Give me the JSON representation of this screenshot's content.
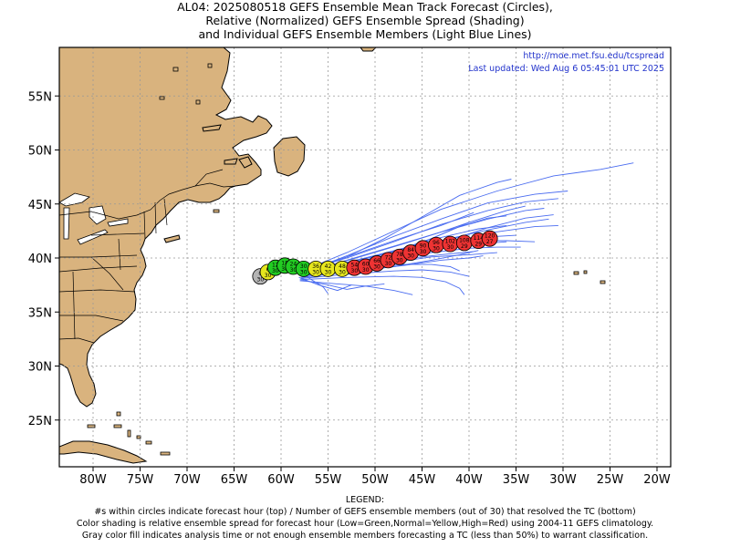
{
  "title": {
    "line1": "AL04: 2025080518 GEFS Ensemble Mean Track Forecast (Circles),",
    "line2": "Relative (Normalized) GEFS Ensemble Spread (Shading)",
    "line3": "and Individual GEFS Ensemble Members (Light Blue Lines)"
  },
  "info": {
    "url": "http://moe.met.fsu.edu/tcspread",
    "updated": "Last updated: Wed Aug 6 05:45:01 UTC 2025"
  },
  "axes": {
    "lon_ticks": [
      "80W",
      "75W",
      "70W",
      "65W",
      "60W",
      "55W",
      "50W",
      "45W",
      "40W",
      "35W",
      "30W",
      "25W",
      "20W"
    ],
    "lat_ticks": [
      "55N",
      "50N",
      "45N",
      "40N",
      "35N",
      "30N",
      "25N"
    ]
  },
  "legend": {
    "heading": "LEGEND:",
    "line1": "#s within circles indicate forecast hour (top) / Number of GEFS ensemble members (out of 30) that resolved the TC (bottom)",
    "line2": "Color shading is relative ensemble spread for forecast hour (Low=Green,Normal=Yellow,High=Red) using 2004-11 GEFS climatology.",
    "line3": "Gray color fill indicates analysis time or not enough ensemble members forecasting a TC (less than 50%) to warrant classification."
  },
  "colors": {
    "land": "#d9b37e",
    "ocean": "#ffffff",
    "member_track": "#4a6cf0",
    "gray": "#b4b4b4",
    "low": "#22cc22",
    "normal": "#e6e61e",
    "high": "#ee3333"
  },
  "mean_track": [
    {
      "hour": "0",
      "members": "30",
      "lon": -62.2,
      "lat": 38.3,
      "spread": "gray"
    },
    {
      "hour": "6",
      "members": "30",
      "lon": -61.4,
      "lat": 38.7,
      "spread": "normal"
    },
    {
      "hour": "12",
      "members": "30",
      "lon": -60.6,
      "lat": 39.1,
      "spread": "low"
    },
    {
      "hour": "18",
      "members": "30",
      "lon": -59.6,
      "lat": 39.3,
      "spread": "low"
    },
    {
      "hour": "24",
      "members": "30",
      "lon": -58.7,
      "lat": 39.2,
      "spread": "low"
    },
    {
      "hour": "30",
      "members": "30",
      "lon": -57.6,
      "lat": 39.0,
      "spread": "low"
    },
    {
      "hour": "36",
      "members": "30",
      "lon": -56.3,
      "lat": 39.0,
      "spread": "normal"
    },
    {
      "hour": "42",
      "members": "30",
      "lon": -55.0,
      "lat": 39.0,
      "spread": "normal"
    },
    {
      "hour": "48",
      "members": "30",
      "lon": -53.5,
      "lat": 39.0,
      "spread": "normal"
    },
    {
      "hour": "54",
      "members": "30",
      "lon": -52.2,
      "lat": 39.1,
      "spread": "high"
    },
    {
      "hour": "60",
      "members": "30",
      "lon": -51.0,
      "lat": 39.2,
      "spread": "high"
    },
    {
      "hour": "66",
      "members": "30",
      "lon": -49.8,
      "lat": 39.5,
      "spread": "high"
    },
    {
      "hour": "72",
      "members": "30",
      "lon": -48.6,
      "lat": 39.8,
      "spread": "high"
    },
    {
      "hour": "78",
      "members": "30",
      "lon": -47.4,
      "lat": 40.1,
      "spread": "high"
    },
    {
      "hour": "84",
      "members": "30",
      "lon": -46.2,
      "lat": 40.5,
      "spread": "high"
    },
    {
      "hour": "90",
      "members": "30",
      "lon": -44.9,
      "lat": 40.9,
      "spread": "high"
    },
    {
      "hour": "96",
      "members": "30",
      "lon": -43.5,
      "lat": 41.2,
      "spread": "high"
    },
    {
      "hour": "102",
      "members": "30",
      "lon": -42.0,
      "lat": 41.3,
      "spread": "high"
    },
    {
      "hour": "108",
      "members": "29",
      "lon": -40.5,
      "lat": 41.4,
      "spread": "high"
    },
    {
      "hour": "114",
      "members": "29",
      "lon": -39.0,
      "lat": 41.6,
      "spread": "high"
    },
    {
      "hour": "120",
      "members": "27",
      "lon": -37.8,
      "lat": 41.8,
      "spread": "high"
    }
  ],
  "member_tracks": [
    [
      [
        -57.5,
        38.9
      ],
      [
        -53,
        40.5
      ],
      [
        -48,
        42.5
      ],
      [
        -43,
        44.5
      ],
      [
        -37,
        46.2
      ],
      [
        -31,
        47.6
      ],
      [
        -26,
        48.2
      ],
      [
        -22.5,
        48.8
      ]
    ],
    [
      [
        -57.5,
        38.7
      ],
      [
        -53,
        40.2
      ],
      [
        -48,
        42
      ],
      [
        -43,
        43.6
      ],
      [
        -38,
        45.1
      ],
      [
        -33,
        45.9
      ],
      [
        -29.5,
        46.2
      ]
    ],
    [
      [
        -57.5,
        38.8
      ],
      [
        -53,
        40.0
      ],
      [
        -48,
        41.5
      ],
      [
        -43,
        43.1
      ],
      [
        -38,
        44.4
      ],
      [
        -34,
        45.2
      ],
      [
        -30.5,
        45.5
      ]
    ],
    [
      [
        -57.6,
        38.6
      ],
      [
        -53,
        39.8
      ],
      [
        -48,
        41.1
      ],
      [
        -43,
        42.4
      ],
      [
        -38,
        43.6
      ],
      [
        -34,
        44.4
      ],
      [
        -32,
        44.6
      ]
    ],
    [
      [
        -57.6,
        38.6
      ],
      [
        -53,
        39.6
      ],
      [
        -48,
        40.6
      ],
      [
        -44,
        41.8
      ],
      [
        -40,
        43.3
      ],
      [
        -36,
        44.4
      ],
      [
        -34,
        44.8
      ]
    ],
    [
      [
        -57.6,
        38.6
      ],
      [
        -53,
        39.5
      ],
      [
        -48,
        40.6
      ],
      [
        -43,
        41.6
      ],
      [
        -38,
        42.6
      ],
      [
        -34,
        43.3
      ],
      [
        -31.5,
        43.6
      ]
    ],
    [
      [
        -57.7,
        38.5
      ],
      [
        -53,
        39.4
      ],
      [
        -48,
        40.2
      ],
      [
        -43,
        41.1
      ],
      [
        -38,
        42.3
      ],
      [
        -33,
        42.9
      ],
      [
        -30.5,
        43.0
      ]
    ],
    [
      [
        -57.7,
        38.4
      ],
      [
        -53,
        39.3
      ],
      [
        -48,
        40.2
      ],
      [
        -43,
        41.4
      ],
      [
        -38,
        42.8
      ],
      [
        -34,
        43.7
      ],
      [
        -31,
        44.0
      ]
    ],
    [
      [
        -57.7,
        38.4
      ],
      [
        -53,
        39.2
      ],
      [
        -48,
        40.1
      ],
      [
        -44,
        41.0
      ],
      [
        -40,
        41.6
      ],
      [
        -36,
        41.6
      ],
      [
        -33,
        41.5
      ]
    ],
    [
      [
        -57.8,
        38.3
      ],
      [
        -53,
        39.0
      ],
      [
        -48,
        39.8
      ],
      [
        -44,
        40.5
      ],
      [
        -40,
        40.9
      ],
      [
        -37,
        41.0
      ],
      [
        -34.5,
        41.0
      ]
    ],
    [
      [
        -57.8,
        38.3
      ],
      [
        -53,
        38.9
      ],
      [
        -48,
        39.6
      ],
      [
        -44,
        40.1
      ],
      [
        -40,
        40.3
      ],
      [
        -37,
        40.5
      ]
    ],
    [
      [
        -57.8,
        38.2
      ],
      [
        -53,
        38.7
      ],
      [
        -48,
        39.2
      ],
      [
        -44,
        39.8
      ],
      [
        -41,
        40.3
      ],
      [
        -39,
        40.7
      ]
    ],
    [
      [
        -57.9,
        38.1
      ],
      [
        -53,
        38.5
      ],
      [
        -48,
        38.8
      ],
      [
        -45,
        38.9
      ],
      [
        -42,
        38.7
      ],
      [
        -40,
        38.3
      ]
    ],
    [
      [
        -57.9,
        38.0
      ],
      [
        -53,
        38.2
      ],
      [
        -48,
        38.3
      ],
      [
        -45,
        38.2
      ],
      [
        -42.5,
        37.8
      ],
      [
        -41,
        37.2
      ],
      [
        -40.5,
        36.6
      ]
    ],
    [
      [
        -58,
        37.9
      ],
      [
        -54,
        37.6
      ],
      [
        -51,
        37.4
      ],
      [
        -48,
        37.0
      ],
      [
        -46,
        36.6
      ]
    ],
    [
      [
        -58,
        38.0
      ],
      [
        -55,
        37.5
      ],
      [
        -53,
        37.1
      ],
      [
        -51,
        37.4
      ],
      [
        -49,
        37.6
      ]
    ],
    [
      [
        -57.5,
        38.4
      ],
      [
        -55.5,
        37.3
      ],
      [
        -55,
        36.7
      ]
    ],
    [
      [
        -58.1,
        38.2
      ],
      [
        -56,
        37.5
      ],
      [
        -54,
        37.0
      ],
      [
        -52.5,
        37.5
      ]
    ],
    [
      [
        -57.6,
        38.7
      ],
      [
        -52,
        40.4
      ],
      [
        -47,
        41.9
      ],
      [
        -43,
        43.0
      ],
      [
        -39.5,
        44.2
      ]
    ],
    [
      [
        -57.6,
        38.6
      ],
      [
        -52,
        40.0
      ],
      [
        -47,
        41.3
      ],
      [
        -43,
        42.4
      ],
      [
        -40,
        43.3
      ]
    ],
    [
      [
        -57.6,
        38.7
      ],
      [
        -53,
        40.1
      ],
      [
        -49,
        41.8
      ],
      [
        -45,
        43.8
      ],
      [
        -41,
        45.8
      ],
      [
        -37,
        47.0
      ],
      [
        -35.5,
        47.3
      ]
    ],
    [
      [
        -57.7,
        38.5
      ],
      [
        -52,
        39.8
      ],
      [
        -47,
        40.9
      ],
      [
        -43,
        41.9
      ],
      [
        -39,
        42.7
      ],
      [
        -36,
        43.0
      ]
    ],
    [
      [
        -57.7,
        38.5
      ],
      [
        -52,
        39.6
      ],
      [
        -47,
        40.6
      ],
      [
        -43,
        41.4
      ],
      [
        -39,
        41.9
      ],
      [
        -35,
        42.1
      ]
    ],
    [
      [
        -57.8,
        38.4
      ],
      [
        -52,
        39.5
      ],
      [
        -47,
        40.4
      ],
      [
        -43,
        40.9
      ],
      [
        -39,
        41.3
      ],
      [
        -36,
        41.5
      ]
    ],
    [
      [
        -57.8,
        38.3
      ],
      [
        -52,
        39.3
      ],
      [
        -47,
        39.9
      ],
      [
        -43,
        40.3
      ],
      [
        -39.5,
        40.6
      ]
    ],
    [
      [
        -57.7,
        38.6
      ],
      [
        -52,
        39.6
      ],
      [
        -47,
        40.7
      ],
      [
        -44,
        41.8
      ],
      [
        -41,
        42.9
      ],
      [
        -38,
        43.7
      ],
      [
        -36,
        43.9
      ]
    ],
    [
      [
        -57.9,
        38.2
      ],
      [
        -52,
        38.8
      ],
      [
        -47,
        39.3
      ],
      [
        -43,
        39.8
      ],
      [
        -40,
        40.0
      ],
      [
        -38.5,
        40.2
      ]
    ],
    [
      [
        -57.8,
        38.3
      ],
      [
        -52,
        39.0
      ],
      [
        -47,
        39.4
      ],
      [
        -44,
        39.4
      ],
      [
        -42,
        39.2
      ],
      [
        -41,
        38.8
      ]
    ]
  ]
}
